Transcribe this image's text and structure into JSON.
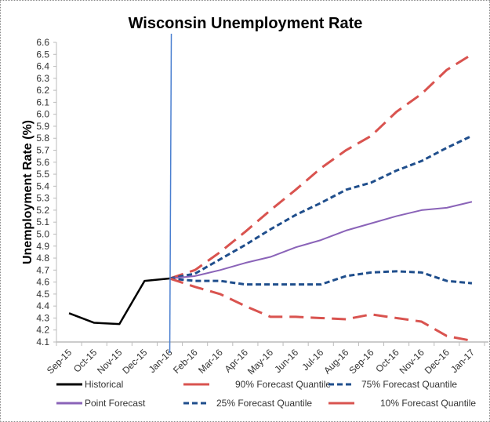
{
  "chart_data": {
    "type": "line",
    "title": "Wisconsin Unemployment Rate",
    "xlabel": "",
    "ylabel": "Unemployment Rate (%)",
    "ylim": [
      4.1,
      6.6
    ],
    "yticks": [
      "4.1",
      "4.2",
      "4.3",
      "4.4",
      "4.5",
      "4.6",
      "4.7",
      "4.8",
      "4.9",
      "5.0",
      "5.1",
      "5.2",
      "5.3",
      "5.4",
      "5.5",
      "5.6",
      "5.7",
      "5.8",
      "5.9",
      "6.0",
      "6.1",
      "6.2",
      "6.3",
      "6.4",
      "6.5",
      "6.6"
    ],
    "categories": [
      "Sep-15",
      "Oct-15",
      "Nov-15",
      "Dec-15",
      "Jan-16",
      "Feb-16",
      "Mar-16",
      "Apr-16",
      "May-16",
      "Jun-16",
      "Jul-16",
      "Aug-16",
      "Sep-16",
      "Oct-16",
      "Nov-16",
      "Dec-16",
      "Jan-17"
    ],
    "vertical_marker": "Jan-16",
    "grid": false,
    "legend_position": "bottom",
    "series": [
      {
        "name": "Historical",
        "color": "#000000",
        "dash": "solid",
        "values": [
          4.34,
          4.26,
          4.25,
          4.61,
          4.63,
          null,
          null,
          null,
          null,
          null,
          null,
          null,
          null,
          null,
          null,
          null,
          null
        ]
      },
      {
        "name": "90% Forecast Quantile",
        "color": "#d9534f",
        "dash": "longdash",
        "values": [
          null,
          null,
          null,
          null,
          4.63,
          4.7,
          4.85,
          5.02,
          5.2,
          5.37,
          5.55,
          5.7,
          5.82,
          6.02,
          6.17,
          6.37,
          6.5
        ]
      },
      {
        "name": "75% Forecast Quantile",
        "color": "#1f4e8c",
        "dash": "dash",
        "values": [
          null,
          null,
          null,
          null,
          4.63,
          4.67,
          4.79,
          4.91,
          5.04,
          5.16,
          5.26,
          5.37,
          5.43,
          5.53,
          5.61,
          5.72,
          5.82
        ]
      },
      {
        "name": "Point Forecast",
        "color": "#8a63b8",
        "dash": "solid",
        "values": [
          null,
          null,
          null,
          null,
          4.63,
          4.65,
          4.7,
          4.76,
          4.81,
          4.89,
          4.95,
          5.03,
          5.09,
          5.15,
          5.2,
          5.22,
          5.27
        ]
      },
      {
        "name": "25% Forecast Quantile",
        "color": "#1f4e8c",
        "dash": "dash",
        "values": [
          null,
          null,
          null,
          null,
          4.63,
          4.61,
          4.61,
          4.58,
          4.58,
          4.58,
          4.58,
          4.65,
          4.68,
          4.69,
          4.68,
          4.61,
          4.59
        ]
      },
      {
        "name": "10% Forecast Quantile",
        "color": "#d9534f",
        "dash": "longdash",
        "values": [
          null,
          null,
          null,
          null,
          4.63,
          4.56,
          4.5,
          4.4,
          4.31,
          4.31,
          4.3,
          4.29,
          4.33,
          4.3,
          4.27,
          4.15,
          4.11
        ]
      }
    ]
  }
}
